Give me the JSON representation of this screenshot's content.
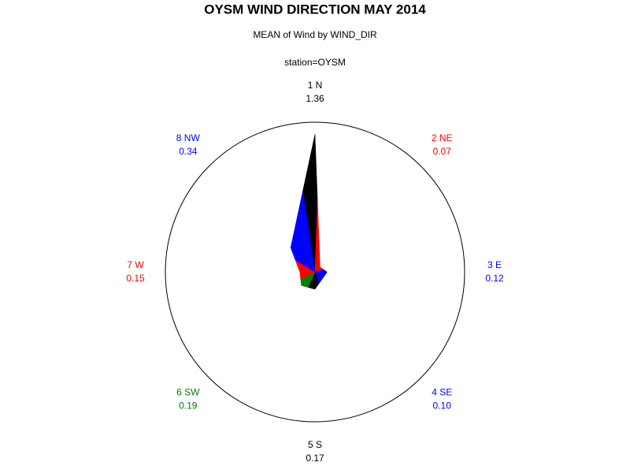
{
  "chart_data": {
    "type": "star",
    "title": "OYSM WIND DIRECTION MAY 2014",
    "subtitle": "MEAN of Wind by WIND_DIR",
    "group_label": "station=OYSM",
    "categories": [
      "1 N",
      "2 NE",
      "3 E",
      "4 SE",
      "5 S",
      "6 SW",
      "7 W",
      "8 NW"
    ],
    "values": [
      1.36,
      0.07,
      0.12,
      0.1,
      0.17,
      0.19,
      0.15,
      0.34
    ],
    "value_labels": [
      "1.36",
      "0.07",
      "0.12",
      "0.10",
      "0.17",
      "0.19",
      "0.15",
      "0.34"
    ],
    "colors": [
      "#000000",
      "#ff0000",
      "#0000ff",
      "#0000ff",
      "#000000",
      "#008000",
      "#ff0000",
      "#0000ff"
    ]
  }
}
